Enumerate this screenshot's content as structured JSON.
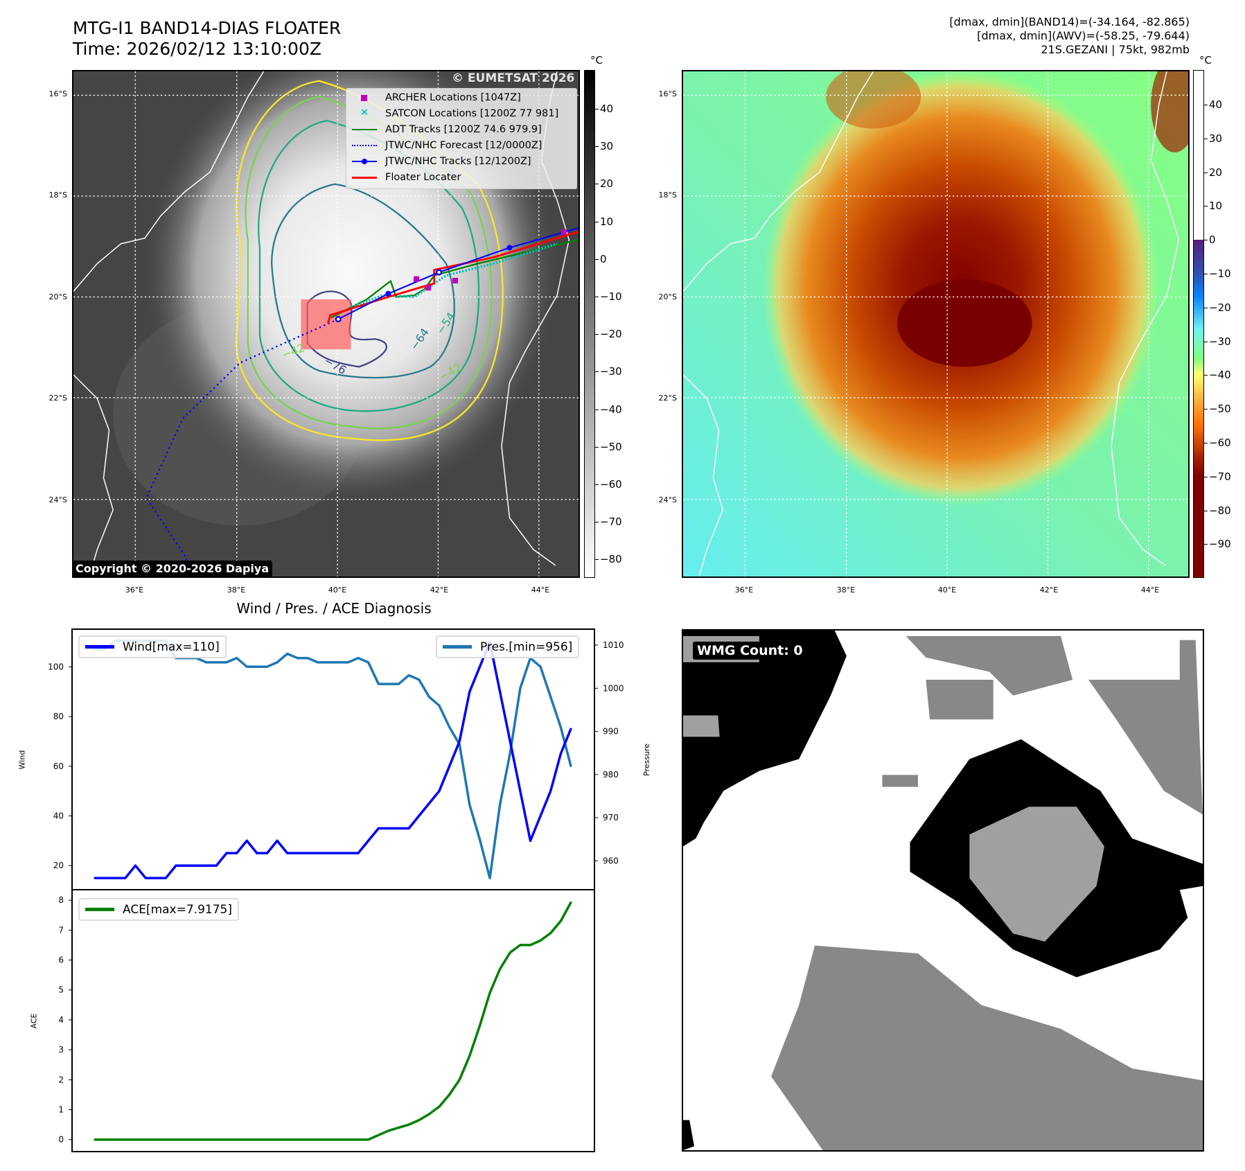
{
  "header": {
    "title_line1": "MTG-I1 BAND14-DIAS FLOATER",
    "title_line2": "Time: 2026/02/12 13:10:00Z",
    "stats_line1": "[dmax, dmin](BAND14)=(-34.164, -82.865)",
    "stats_line2": "[dmax, dmin](AWV)=(-58.25, -79.644)",
    "stats_line3": "21S.GEZANI | 75kt, 982mb"
  },
  "maps": {
    "lat_labels": [
      "16°S",
      "18°S",
      "20°S",
      "22°S",
      "24°S"
    ],
    "lon_labels": [
      "36°E",
      "38°E",
      "40°E",
      "42°E",
      "44°E"
    ],
    "unit": "°C",
    "left_colorbar_ticks": [
      "40",
      "30",
      "20",
      "10",
      "0",
      "−10",
      "−20",
      "−30",
      "−40",
      "−50",
      "−60",
      "−70",
      "−80"
    ],
    "right_colorbar_ticks": [
      "40",
      "30",
      "20",
      "10",
      "0",
      "−10",
      "−20",
      "−30",
      "−40",
      "−50",
      "−60",
      "−70",
      "−80",
      "−90"
    ],
    "legend": [
      {
        "label": "ARCHER Locations [1047Z]",
        "color": "#c000c0"
      },
      {
        "label": "SATCON Locations [1200Z 77 981]",
        "color": "#00c0c0"
      },
      {
        "label": "ADT Tracks [1200Z 74.6 979.9]",
        "color": "#008000"
      },
      {
        "label": "JTWC/NHC Forecast [12/0000Z]",
        "color": "#0000ff"
      },
      {
        "label": "JTWC/NHC Tracks [12/1200Z]",
        "color": "#0000ff"
      },
      {
        "label": "Floater Locater",
        "color": "#ff0000"
      }
    ],
    "contour_labels": [
      "−76",
      "−64",
      "−54",
      "−42",
      "−42"
    ],
    "watermark": "© EUMETSAT 2026",
    "copyright": "Copyright © 2020-2026 Dapiya"
  },
  "wmg": {
    "label": "WMG Count: 0"
  },
  "chart_data": {
    "type": "line",
    "title": "Wind / Pres. / ACE Diagnosis",
    "x": [
      0,
      1,
      2,
      3,
      4,
      5,
      6,
      7,
      8,
      9,
      10,
      11,
      12,
      13,
      14,
      15,
      16,
      17,
      18,
      19,
      20,
      21,
      22,
      23,
      24,
      25,
      26,
      27,
      28,
      29,
      30,
      31,
      32,
      33,
      34,
      35,
      36,
      37,
      38,
      39,
      40,
      41,
      42,
      43,
      44,
      45,
      46,
      47
    ],
    "xlim": [
      -2.26,
      49.33
    ],
    "series": [
      {
        "name": "Wind",
        "legend": "Wind[max=110]",
        "axis": "left",
        "color": "#0000ff",
        "values": [
          15,
          15,
          15,
          15,
          20,
          15,
          15,
          15,
          20,
          20,
          20,
          20,
          20,
          25,
          25,
          30,
          25,
          25,
          30,
          25,
          25,
          25,
          25,
          25,
          25,
          25,
          25,
          30,
          35,
          35,
          35,
          35,
          40,
          45,
          50,
          60,
          70,
          90,
          100,
          110,
          90,
          70,
          50,
          30,
          40,
          50,
          65,
          75
        ]
      },
      {
        "name": "Pres.",
        "legend": "Pres.[min=956]",
        "axis": "right",
        "color": "#1f77b4",
        "values": [
          1009,
          1009,
          1011,
          1011,
          1011,
          1011,
          1011,
          1011,
          1007,
          1007,
          1007,
          1006,
          1006,
          1006,
          1007,
          1005,
          1005,
          1005,
          1006,
          1008,
          1007,
          1007,
          1006,
          1006,
          1006,
          1006,
          1007,
          1006,
          1001,
          1001,
          1001,
          1003,
          1002,
          998,
          996,
          991,
          987,
          973,
          965,
          956,
          973,
          985,
          1000,
          1007,
          1005,
          998,
          991,
          982
        ]
      },
      {
        "name": "ACE",
        "legend": "ACE[max=7.9175]",
        "axis": "ace",
        "color": "#008000",
        "values": [
          0,
          0,
          0,
          0,
          0,
          0,
          0,
          0,
          0,
          0,
          0,
          0,
          0,
          0,
          0,
          0,
          0,
          0,
          0,
          0,
          0,
          0,
          0,
          0,
          0,
          0,
          0,
          0,
          0.15,
          0.3,
          0.4,
          0.5,
          0.65,
          0.85,
          1.1,
          1.5,
          2.0,
          2.8,
          3.8,
          4.9,
          5.7,
          6.25,
          6.5,
          6.5,
          6.65,
          6.9,
          7.3,
          7.92
        ]
      }
    ],
    "wind_axis": {
      "label": "Wind",
      "ylim": [
        10.3,
        115.2
      ],
      "ticks": [
        20,
        40,
        60,
        80,
        100
      ]
    },
    "pres_axis": {
      "label": "Pressure",
      "ylim": [
        953.3,
        1013.7
      ],
      "ticks": [
        960,
        970,
        980,
        990,
        1000,
        1010
      ]
    },
    "ace_axis": {
      "label": "ACE",
      "ylim": [
        -0.4,
        8.35
      ],
      "ticks": [
        0,
        1,
        2,
        3,
        4,
        5,
        6,
        7,
        8
      ]
    }
  }
}
